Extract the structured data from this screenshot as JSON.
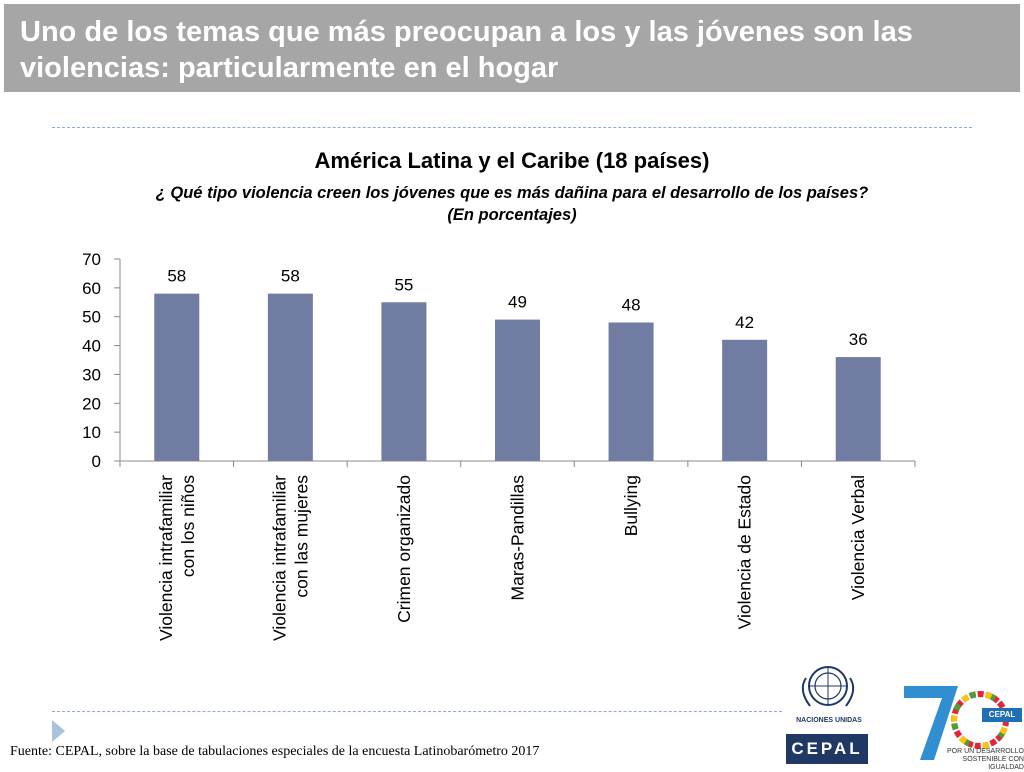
{
  "header": {
    "title": "Uno de los temas que más preocupan a los y las jóvenes son las violencias: particularmente en el hogar"
  },
  "chart_data": {
    "type": "bar",
    "title": "América Latina y el Caribe (18 países)",
    "subtitle_line1": "¿ Qué tipo  violencia creen los jóvenes que es más dañina para el desarrollo de los países?",
    "subtitle_line2": "(En porcentajes)",
    "categories": [
      [
        "Violencia intrafamiliar",
        "con los niños"
      ],
      [
        "Violencia intrafamiliar",
        "con las mujeres"
      ],
      [
        "Crimen organizado"
      ],
      [
        "Maras-Pandillas"
      ],
      [
        "Bullying"
      ],
      [
        "Violencia de Estado"
      ],
      [
        "Violencia Verbal"
      ]
    ],
    "values": [
      58,
      58,
      55,
      49,
      48,
      42,
      36
    ],
    "data_labels": [
      "58",
      "58",
      "55",
      "49",
      "48",
      "42",
      "36"
    ],
    "ylim": [
      0,
      70
    ],
    "yticks": [
      0,
      10,
      20,
      30,
      40,
      50,
      60,
      70
    ],
    "bar_color": "#717ca3",
    "grid": false
  },
  "footer": {
    "source": "Fuente: CEPAL, sobre la base de tabulaciones especiales de la encuesta Latinobarómetro 2017",
    "un_label": "NACIONES UNIDAS",
    "cepal_label": "CEPAL",
    "anniv_badge": "CEPAL",
    "anniv_line1": "POR UN DESARROLLO",
    "anniv_line2": "SOSTENIBLE CON IGUALDAD"
  }
}
